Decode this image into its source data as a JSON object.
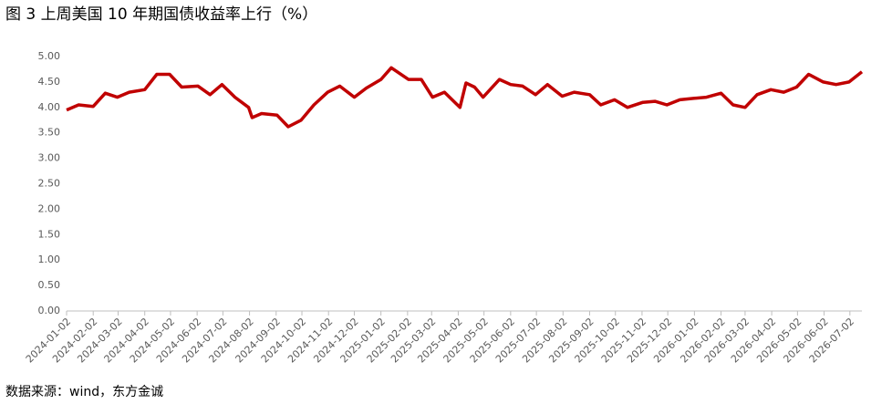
{
  "chart_data": {
    "type": "line",
    "title": "图 3 上周美国 10 年期国债收益率上行（%）",
    "source": "数据来源：wind，东方金诚",
    "color": "#c00000",
    "x": [
      "2024-01-02",
      "2024-01-16",
      "2024-02-02",
      "2024-02-16",
      "2024-03-01",
      "2024-03-15",
      "2024-04-02",
      "2024-04-16",
      "2024-05-01",
      "2024-05-15",
      "2024-06-03",
      "2024-06-17",
      "2024-07-01",
      "2024-07-16",
      "2024-08-01",
      "2024-08-05",
      "2024-08-16",
      "2024-09-03",
      "2024-09-16",
      "2024-10-01",
      "2024-10-16",
      "2024-11-01",
      "2024-11-15",
      "2024-12-02",
      "2024-12-16",
      "2025-01-02",
      "2025-01-14",
      "2025-02-03",
      "2025-02-18",
      "2025-03-03",
      "2025-03-17",
      "2025-04-04",
      "2025-04-11",
      "2025-04-21",
      "2025-05-01",
      "2025-05-20",
      "2025-06-02",
      "2025-06-16",
      "2025-07-01",
      "2025-07-15",
      "2025-08-01",
      "2025-08-15",
      "2025-09-02",
      "2025-09-15",
      "2025-10-01",
      "2025-10-16",
      "2025-11-03",
      "2025-11-17",
      "2025-12-01",
      "2025-12-16",
      "2026-01-02",
      "2026-01-16",
      "2026-02-02",
      "2026-02-16",
      "2026-03-02",
      "2026-03-16",
      "2026-04-01",
      "2026-04-16",
      "2026-05-01",
      "2026-05-15",
      "2026-06-01",
      "2026-06-16",
      "2026-07-01",
      "2026-07-16"
    ],
    "values": [
      3.95,
      4.05,
      4.02,
      4.28,
      4.2,
      4.3,
      4.35,
      4.65,
      4.65,
      4.4,
      4.42,
      4.25,
      4.45,
      4.2,
      4.0,
      3.8,
      3.88,
      3.85,
      3.62,
      3.75,
      4.05,
      4.3,
      4.42,
      4.2,
      4.38,
      4.55,
      4.78,
      4.55,
      4.55,
      4.2,
      4.3,
      4.0,
      4.48,
      4.4,
      4.2,
      4.55,
      4.45,
      4.42,
      4.25,
      4.45,
      4.22,
      4.3,
      4.25,
      4.05,
      4.15,
      4.0,
      4.1,
      4.12,
      4.05,
      4.15,
      4.18,
      4.2,
      4.28,
      4.05,
      4.0,
      4.25,
      4.35,
      4.3,
      4.4,
      4.65,
      4.5,
      4.45,
      4.5,
      4.7
    ],
    "xlim": [
      "2024-01-02",
      "2026-07-16"
    ],
    "xticks": [
      "2024-01-02",
      "2024-02-02",
      "2024-03-02",
      "2024-04-02",
      "2024-05-02",
      "2024-06-02",
      "2024-07-02",
      "2024-08-02",
      "2024-09-02",
      "2024-10-02",
      "2024-11-02",
      "2024-12-02",
      "2025-01-02",
      "2025-02-02",
      "2025-03-02",
      "2025-04-02",
      "2025-05-02",
      "2025-06-02",
      "2025-07-02",
      "2025-08-02",
      "2025-09-02",
      "2025-10-02",
      "2025-11-02",
      "2025-12-02",
      "2026-01-02",
      "2026-02-02",
      "2026-03-02",
      "2026-04-02",
      "2026-05-02",
      "2026-06-02",
      "2026-07-02"
    ],
    "ylim": [
      0,
      5
    ],
    "yticks": [
      {
        "value": 0,
        "label": "0.00"
      },
      {
        "value": 0.5,
        "label": "0.50"
      },
      {
        "value": 1,
        "label": "1.00"
      },
      {
        "value": 1.5,
        "label": "1.50"
      },
      {
        "value": 2,
        "label": "2.00"
      },
      {
        "value": 2.5,
        "label": "2.50"
      },
      {
        "value": 3,
        "label": "3.00"
      },
      {
        "value": 3.5,
        "label": "3.50"
      },
      {
        "value": 4,
        "label": "4.00"
      },
      {
        "value": 4.5,
        "label": "4.50"
      },
      {
        "value": 5,
        "label": "5.00"
      }
    ]
  }
}
